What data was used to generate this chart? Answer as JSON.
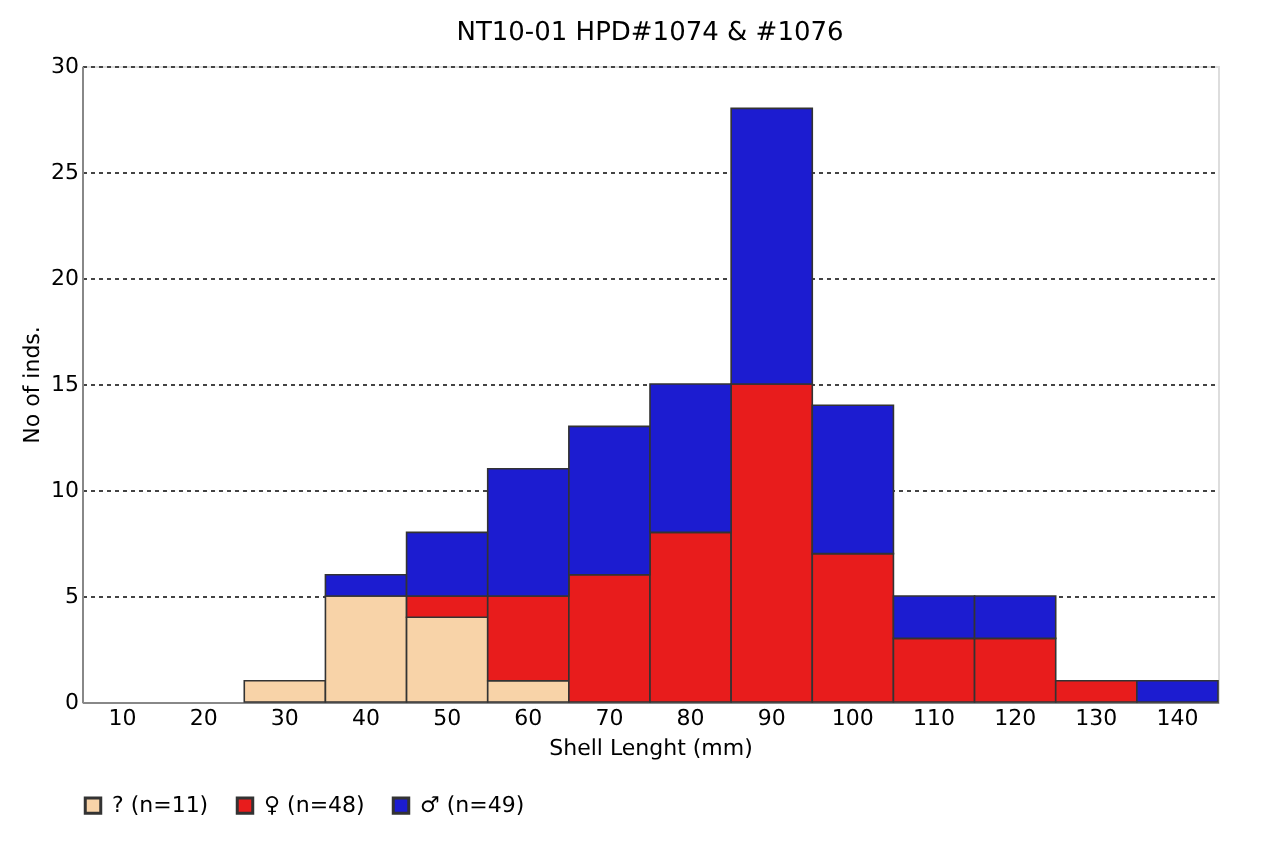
{
  "chart_data": {
    "type": "bar",
    "stacked": true,
    "title": "NT10-01 HPD#1074 & #1076",
    "xlabel": "Shell Lenght (mm)",
    "ylabel": "No of inds.",
    "categories": [
      "10",
      "20",
      "30",
      "40",
      "50",
      "60",
      "70",
      "80",
      "90",
      "100",
      "110",
      "120",
      "130",
      "140"
    ],
    "series": [
      {
        "name": "? (n=11)",
        "color": "#f8d3a8",
        "values": [
          0,
          0,
          1,
          5,
          4,
          1,
          0,
          0,
          0,
          0,
          0,
          0,
          0,
          0
        ]
      },
      {
        "name": "♀ (n=48)",
        "color": "#e81c1c",
        "values": [
          0,
          0,
          0,
          0,
          1,
          4,
          6,
          8,
          15,
          7,
          3,
          3,
          1,
          0
        ]
      },
      {
        "name": "♂ (n=49)",
        "color": "#1c1cd0",
        "values": [
          0,
          0,
          0,
          1,
          3,
          6,
          7,
          7,
          13,
          7,
          2,
          2,
          0,
          1
        ]
      }
    ],
    "ylim": [
      0,
      30
    ],
    "yticks": [
      0,
      5,
      10,
      15,
      20,
      25,
      30
    ],
    "grid": "y",
    "legend": "bottom"
  }
}
